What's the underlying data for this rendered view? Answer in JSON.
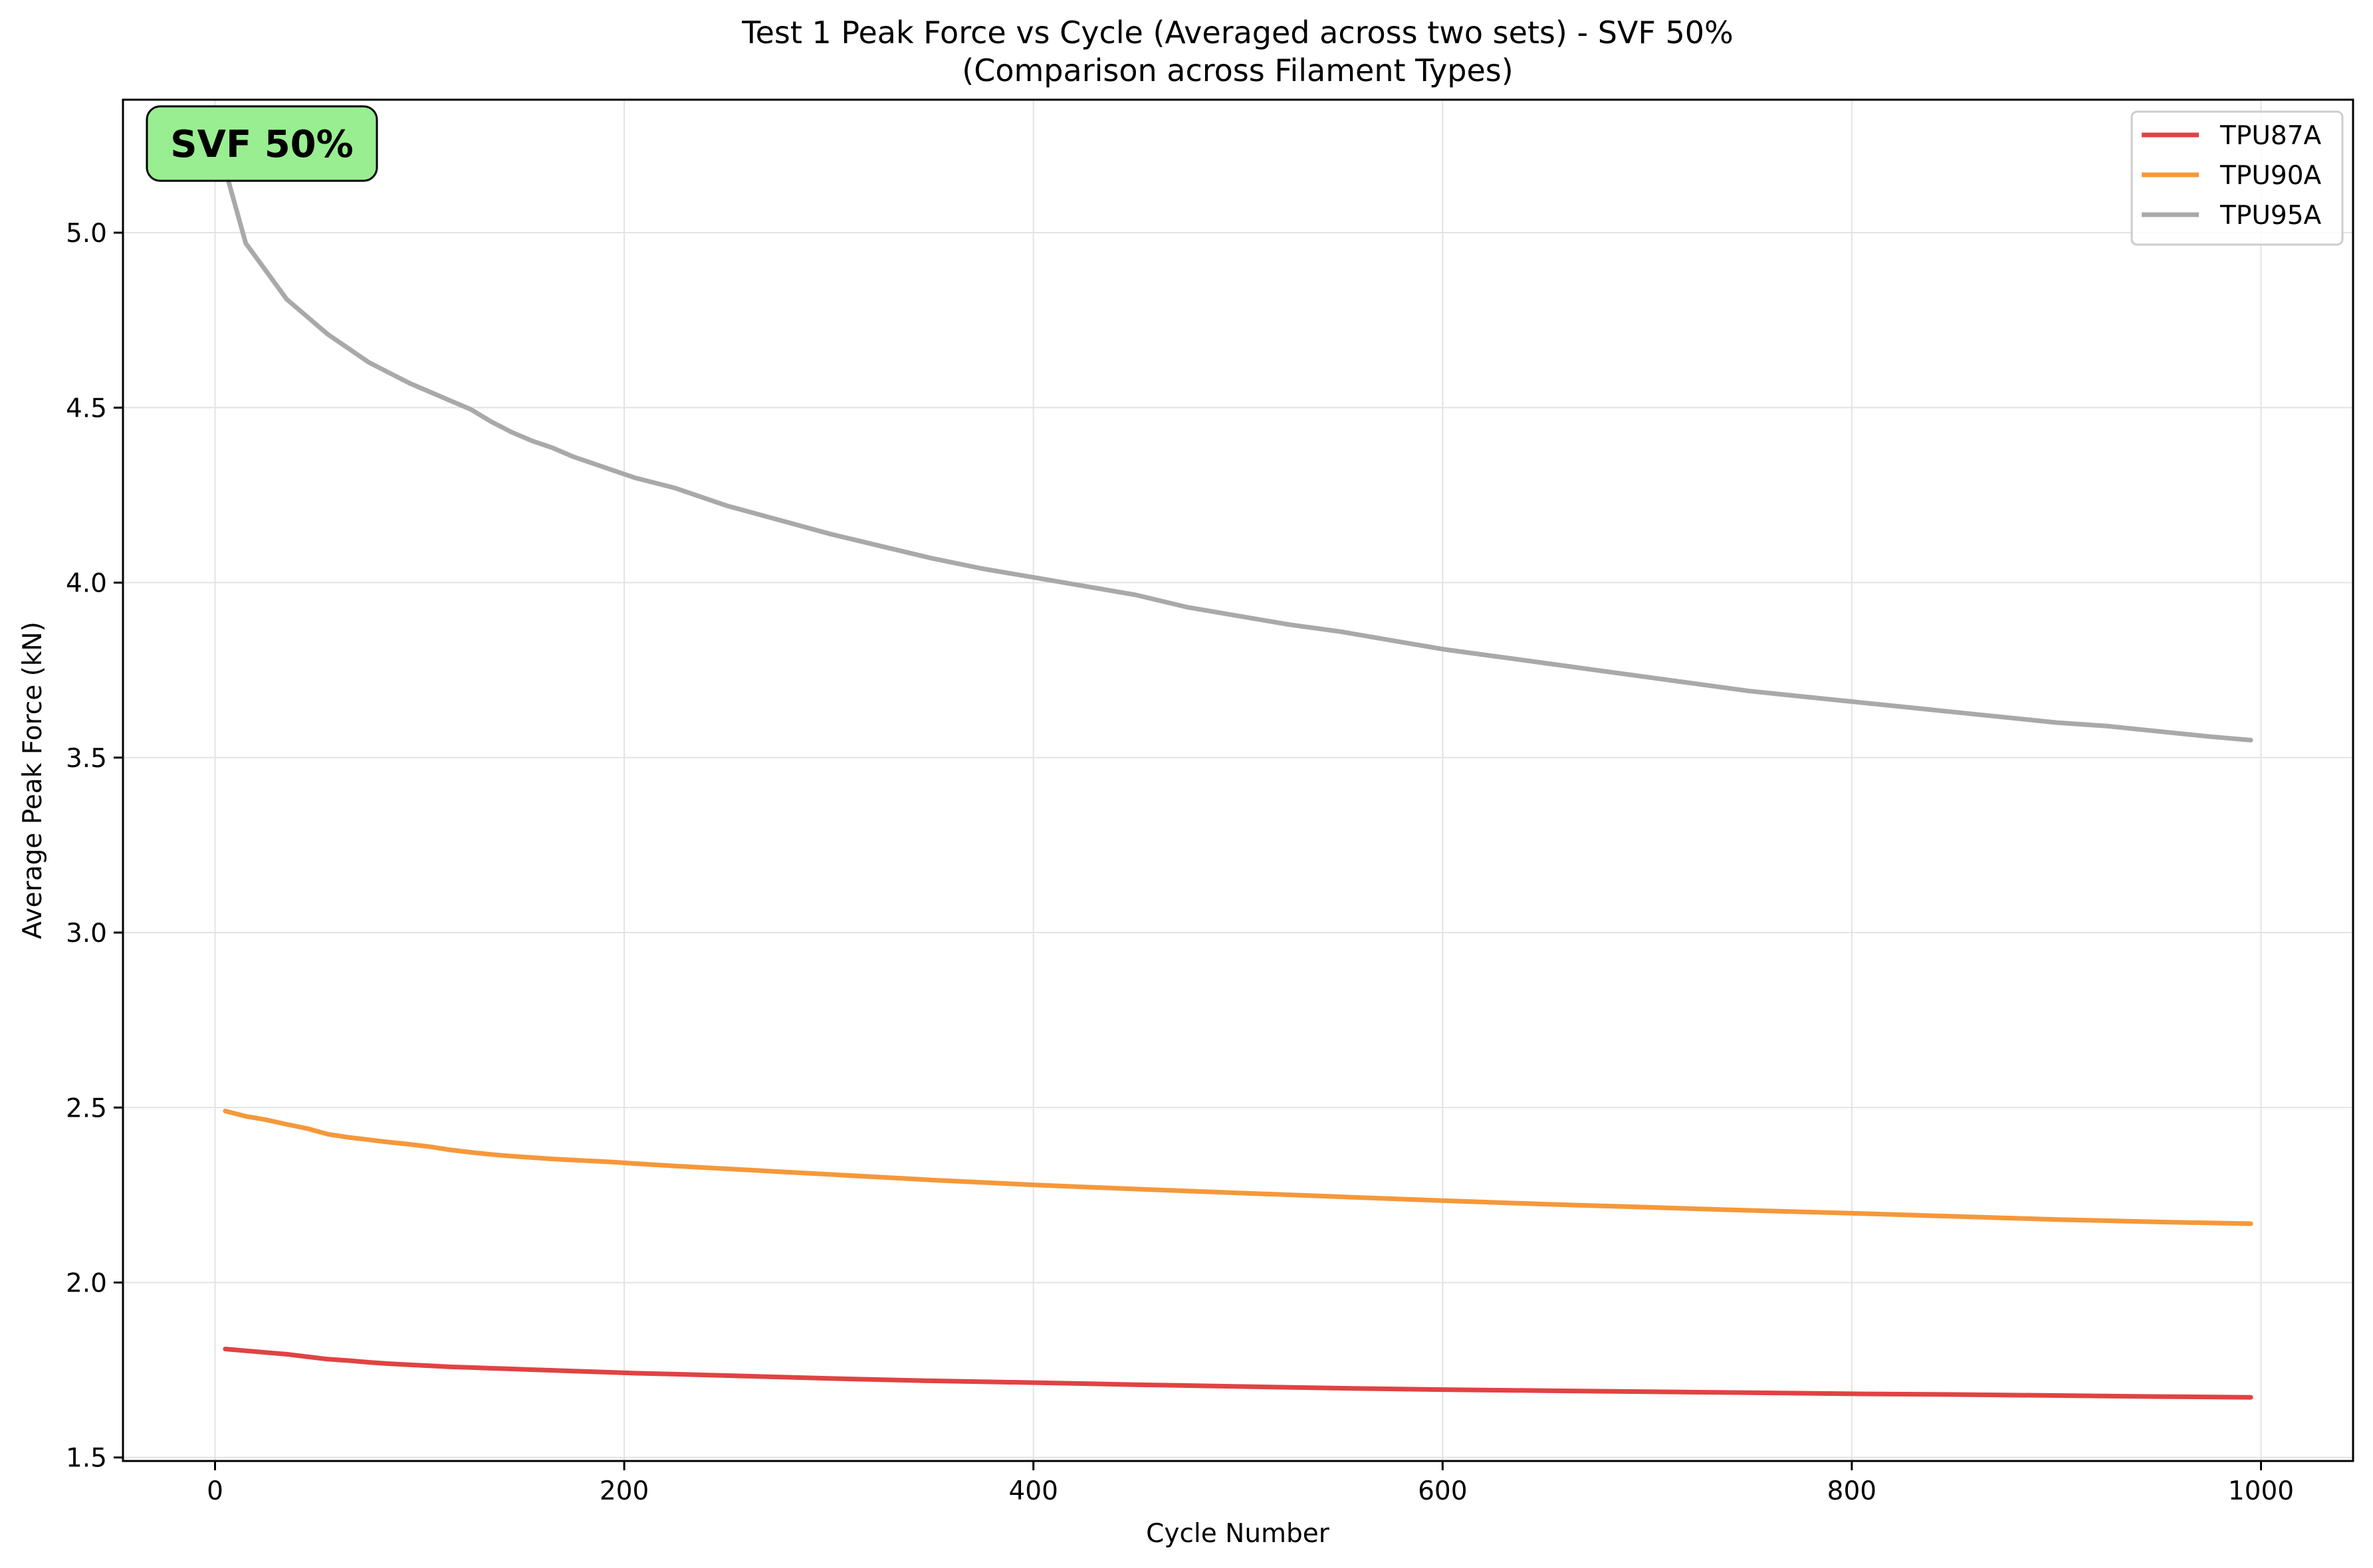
{
  "chart_data": {
    "type": "line",
    "title_line1": "Test 1 Peak Force vs Cycle (Averaged across two sets) - SVF 50%",
    "title_line2": "(Comparison across Filament Types)",
    "xlabel": "Cycle Number",
    "ylabel": "Average Peak Force (kN)",
    "xlim": [
      -45,
      1045
    ],
    "ylim": [
      1.49,
      5.38
    ],
    "xticks": [
      0,
      200,
      400,
      600,
      800,
      1000
    ],
    "xtick_labels": [
      "0",
      "200",
      "400",
      "600",
      "800",
      "1000"
    ],
    "yticks": [
      1.5,
      2.0,
      2.5,
      3.0,
      3.5,
      4.0,
      4.5,
      5.0
    ],
    "ytick_labels": [
      "1.5",
      "2.0",
      "2.5",
      "3.0",
      "3.5",
      "4.0",
      "4.5",
      "5.0"
    ],
    "grid": true,
    "legend_position": "top-right",
    "annotation": "SVF 50%",
    "annotation_color": "#98ee90",
    "series": [
      {
        "name": "TPU87A",
        "color": "#e04343",
        "x": [
          5,
          15,
          25,
          35,
          45,
          55,
          65,
          75,
          85,
          95,
          105,
          115,
          125,
          135,
          145,
          155,
          165,
          175,
          185,
          195,
          205,
          225,
          250,
          275,
          300,
          350,
          400,
          450,
          500,
          550,
          600,
          650,
          700,
          750,
          800,
          850,
          900,
          950,
          995
        ],
        "y": [
          1.81,
          1.805,
          1.8,
          1.795,
          1.788,
          1.781,
          1.777,
          1.772,
          1.768,
          1.765,
          1.762,
          1.759,
          1.757,
          1.755,
          1.753,
          1.751,
          1.749,
          1.747,
          1.745,
          1.743,
          1.741,
          1.738,
          1.734,
          1.73,
          1.726,
          1.719,
          1.714,
          1.708,
          1.703,
          1.698,
          1.694,
          1.691,
          1.688,
          1.685,
          1.682,
          1.68,
          1.677,
          1.674,
          1.672
        ]
      },
      {
        "name": "TPU90A",
        "color": "#f5983a",
        "x": [
          5,
          15,
          25,
          35,
          45,
          55,
          65,
          75,
          85,
          95,
          105,
          115,
          125,
          135,
          145,
          155,
          165,
          175,
          185,
          195,
          205,
          225,
          250,
          275,
          300,
          350,
          400,
          450,
          500,
          550,
          600,
          650,
          700,
          750,
          800,
          850,
          900,
          950,
          995
        ],
        "y": [
          2.49,
          2.475,
          2.465,
          2.452,
          2.44,
          2.424,
          2.415,
          2.408,
          2.401,
          2.395,
          2.388,
          2.379,
          2.372,
          2.366,
          2.361,
          2.357,
          2.353,
          2.35,
          2.347,
          2.344,
          2.34,
          2.333,
          2.325,
          2.317,
          2.309,
          2.293,
          2.279,
          2.267,
          2.256,
          2.245,
          2.234,
          2.224,
          2.215,
          2.206,
          2.198,
          2.189,
          2.18,
          2.173,
          2.168
        ]
      },
      {
        "name": "TPU95A",
        "color": "#a9a9a9",
        "x": [
          5,
          15,
          25,
          35,
          45,
          55,
          65,
          75,
          85,
          95,
          105,
          115,
          125,
          135,
          145,
          155,
          165,
          175,
          185,
          195,
          205,
          225,
          250,
          275,
          300,
          325,
          350,
          375,
          400,
          425,
          450,
          475,
          500,
          525,
          550,
          575,
          600,
          625,
          650,
          675,
          700,
          725,
          750,
          775,
          800,
          825,
          850,
          875,
          900,
          925,
          950,
          975,
          995
        ],
        "y": [
          5.18,
          4.97,
          4.89,
          4.81,
          4.76,
          4.71,
          4.67,
          4.63,
          4.6,
          4.57,
          4.545,
          4.52,
          4.495,
          4.46,
          4.43,
          4.405,
          4.385,
          4.36,
          4.34,
          4.32,
          4.3,
          4.27,
          4.22,
          4.18,
          4.14,
          4.105,
          4.07,
          4.04,
          4.015,
          3.99,
          3.965,
          3.93,
          3.905,
          3.88,
          3.86,
          3.835,
          3.81,
          3.79,
          3.77,
          3.75,
          3.73,
          3.71,
          3.69,
          3.675,
          3.66,
          3.645,
          3.63,
          3.615,
          3.6,
          3.59,
          3.575,
          3.56,
          3.55
        ]
      }
    ]
  }
}
